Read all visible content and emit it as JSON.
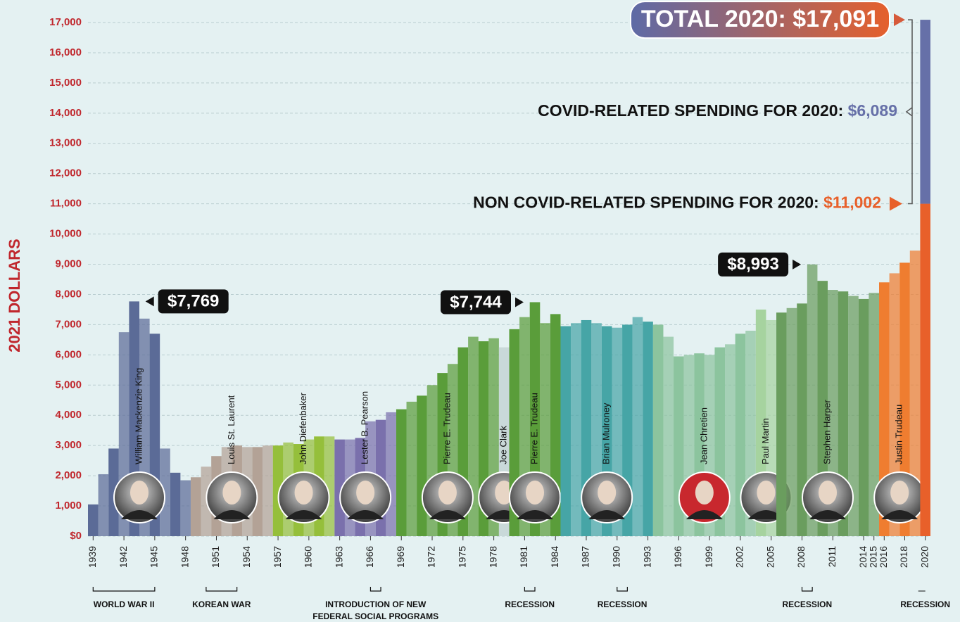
{
  "chart_data": {
    "type": "bar",
    "ylabel": "2021 DOLLARS",
    "xlim": [
      1938.5,
      2020.5
    ],
    "ylim": [
      0,
      17000
    ],
    "xticks": [
      1939,
      1942,
      1945,
      1948,
      1951,
      1954,
      1957,
      1960,
      1963,
      1966,
      1969,
      1972,
      1975,
      1978,
      1981,
      1984,
      1987,
      1990,
      1993,
      1996,
      1999,
      2002,
      2005,
      2008,
      2011,
      2014,
      2015,
      2016,
      2018,
      2020
    ],
    "yticks": [
      {
        "value": 0,
        "label": "$0"
      },
      {
        "value": 1000,
        "label": "1,000"
      },
      {
        "value": 2000,
        "label": "2,000"
      },
      {
        "value": 3000,
        "label": "3,000"
      },
      {
        "value": 4000,
        "label": "4,000"
      },
      {
        "value": 5000,
        "label": "5,000"
      },
      {
        "value": 6000,
        "label": "6,000"
      },
      {
        "value": 7000,
        "label": "7,000"
      },
      {
        "value": 8000,
        "label": "8,000"
      },
      {
        "value": 9000,
        "label": "9,000"
      },
      {
        "value": 10000,
        "label": "10,000"
      },
      {
        "value": 11000,
        "label": "11,000"
      },
      {
        "value": 12000,
        "label": "12,000"
      },
      {
        "value": 13000,
        "label": "13,000"
      },
      {
        "value": 14000,
        "label": "14,000"
      },
      {
        "value": 15000,
        "label": "15,000"
      },
      {
        "value": 16000,
        "label": "16,000"
      },
      {
        "value": 17000,
        "label": "17,000"
      }
    ],
    "grid": true,
    "series": [
      {
        "name": "William Mackenzie King",
        "color": "#5b6b97",
        "x": [
          1939,
          1940,
          1941,
          1942,
          1943,
          1944,
          1945,
          1946,
          1947,
          1948
        ],
        "values": [
          1050,
          2050,
          2900,
          6750,
          7769,
          7200,
          6700,
          2900,
          2100,
          1850
        ],
        "value_labels": [
          null,
          null,
          null,
          null,
          "$7,769",
          null,
          null,
          null,
          null,
          null
        ]
      },
      {
        "name": "Louis St. Laurent",
        "color": "#b3a296",
        "x": [
          1949,
          1950,
          1951,
          1952,
          1953,
          1954,
          1955,
          1956
        ],
        "values": [
          1950,
          2300,
          2650,
          2950,
          3000,
          2950,
          2950,
          3000
        ]
      },
      {
        "name": "John Diefenbaker",
        "color": "#95bf3b",
        "x": [
          1957,
          1958,
          1959,
          1960,
          1961,
          1962
        ],
        "values": [
          3000,
          3100,
          3050,
          3200,
          3300,
          3300
        ]
      },
      {
        "name": "Lester B. Pearson",
        "color": "#7a70ac",
        "x": [
          1963,
          1964,
          1965,
          1966,
          1967,
          1968
        ],
        "values": [
          3200,
          3200,
          3250,
          3800,
          3850,
          4100
        ]
      },
      {
        "name": "Pierre E. Trudeau",
        "color": "#5a9d3a",
        "x": [
          1969,
          1970,
          1971,
          1972,
          1973,
          1974,
          1975,
          1976,
          1977,
          1978
        ],
        "values": [
          4200,
          4450,
          4650,
          5000,
          5400,
          5700,
          6250,
          6600,
          6450,
          6550
        ]
      },
      {
        "name": "Joe Clark",
        "color": "#c9d9d9",
        "x": [
          1979
        ],
        "values": [
          6250
        ]
      },
      {
        "name": "Pierre E. Trudeau",
        "color": "#5a9d3a",
        "x": [
          1980,
          1981,
          1982,
          1983,
          1984
        ],
        "values": [
          6850,
          7250,
          7744,
          7050,
          7350
        ],
        "value_labels": [
          null,
          null,
          "$7,744",
          null,
          null
        ]
      },
      {
        "name": "Brian Mulroney",
        "color": "#46a5a6",
        "x": [
          1985,
          1986,
          1987,
          1988,
          1989,
          1990,
          1991,
          1992,
          1993
        ],
        "values": [
          6950,
          7050,
          7150,
          7050,
          6950,
          6900,
          7000,
          7250,
          7100
        ]
      },
      {
        "name": "Jean Chretien",
        "color": "#8cc49e",
        "x": [
          1994,
          1995,
          1996,
          1997,
          1998,
          1999,
          2000,
          2001,
          2002,
          2003
        ],
        "values": [
          7000,
          6600,
          5950,
          6000,
          6050,
          6000,
          6250,
          6350,
          6700,
          6800
        ]
      },
      {
        "name": "Paul Martin",
        "color": "#a6d39f",
        "x": [
          2004,
          2005
        ],
        "values": [
          7500,
          7150
        ]
      },
      {
        "name": "Stephen Harper",
        "color": "#6a9d5e",
        "x": [
          2006,
          2007,
          2008,
          2009,
          2010,
          2011,
          2012,
          2013,
          2014,
          2015
        ],
        "values": [
          7400,
          7550,
          7700,
          8993,
          8450,
          8150,
          8100,
          7950,
          7850,
          8050
        ],
        "value_labels": [
          null,
          null,
          null,
          "$8,993",
          null,
          null,
          null,
          null,
          null,
          null
        ]
      },
      {
        "name": "Justin Trudeau",
        "color": "#ef7d30",
        "x": [
          2016,
          2017,
          2018,
          2019
        ],
        "values": [
          8400,
          8700,
          9050,
          9450
        ]
      }
    ],
    "stack_2020": {
      "x": 2020,
      "segments": [
        {
          "name": "NON COVID-RELATED SPENDING FOR 2020:",
          "color": "#e8602a",
          "value": 11002,
          "value_label": "$11,002"
        },
        {
          "name": "COVID-RELATED SPENDING FOR 2020:",
          "color": "#6670a8",
          "value": 6089,
          "value_label": "$6,089"
        }
      ],
      "total": 17091,
      "total_label": "TOTAL 2020: $17,091"
    },
    "events": [
      {
        "label": "WORLD WAR II",
        "start": 1939,
        "end": 1945
      },
      {
        "label": "KOREAN WAR",
        "start": 1950,
        "end": 1953
      },
      {
        "label": "INTRODUCTION OF NEW FEDERAL SOCIAL PROGRAMS",
        "start": 1966,
        "end": 1967
      },
      {
        "label": "RECESSION",
        "start": 1981,
        "end": 1982
      },
      {
        "label": "RECESSION",
        "start": 1990,
        "end": 1991
      },
      {
        "label": "RECESSION",
        "start": 2008,
        "end": 2009
      },
      {
        "label": "RECESSION",
        "start": 2020,
        "end": 2020
      }
    ]
  }
}
